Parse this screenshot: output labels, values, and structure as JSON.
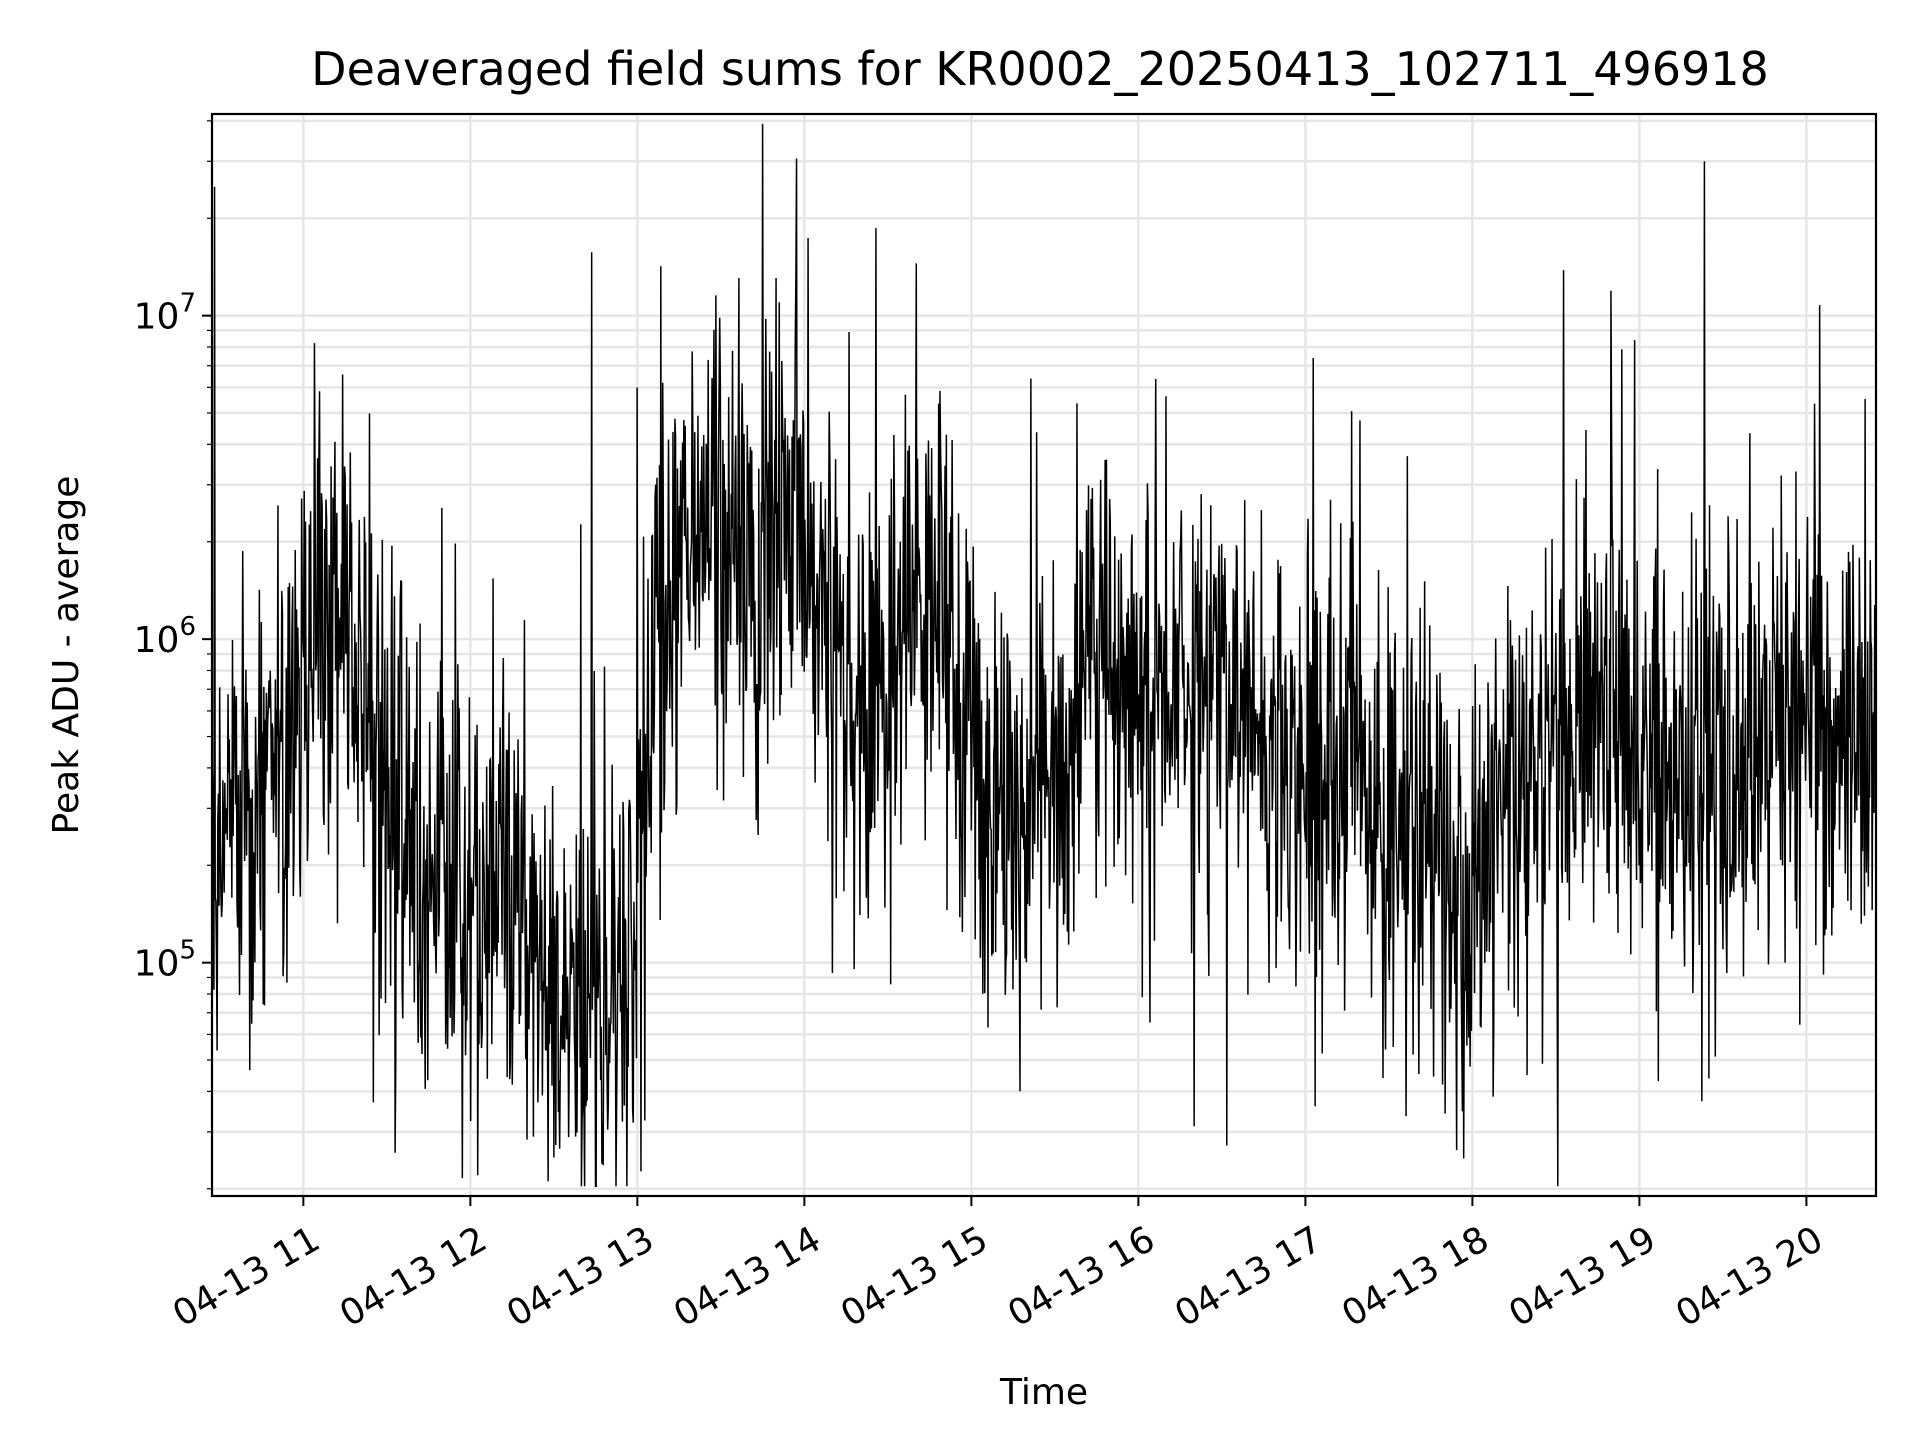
{
  "chart_data": {
    "type": "line",
    "title": "Deaveraged field sums for KR0002_20250413_102711_496918",
    "xlabel": "Time",
    "ylabel": "Peak ADU - average",
    "x_axis": {
      "kind": "datetime",
      "range": [
        "2025-04-13 10:27:11",
        "2025-04-13 20:25:00"
      ],
      "ticks": [
        "04-13 11",
        "04-13 12",
        "04-13 13",
        "04-13 14",
        "04-13 15",
        "04-13 16",
        "04-13 17",
        "04-13 18",
        "04-13 19",
        "04-13 20"
      ],
      "tick_rotation_deg": 30
    },
    "y_axis": {
      "scale": "log",
      "range": [
        19000,
        42000000
      ],
      "ticks": [
        {
          "base": "10",
          "exp": "5",
          "value": 100000
        },
        {
          "base": "10",
          "exp": "6",
          "value": 1000000
        },
        {
          "base": "10",
          "exp": "7",
          "value": 10000000
        }
      ]
    },
    "grid": true,
    "legend": "none",
    "line_color": "#000000",
    "series": [
      {
        "x_unit": "hours of day",
        "x": [
          10.45,
          10.6,
          10.8,
          11.0,
          11.2,
          11.4,
          11.6,
          11.8,
          12.0,
          12.2,
          12.4,
          12.6,
          12.8,
          12.97,
          13.1,
          13.3,
          13.5,
          13.7,
          13.9,
          14.1,
          14.3,
          14.5,
          14.7,
          14.9,
          15.1,
          15.3,
          15.5,
          15.7,
          15.9,
          16.1,
          16.3,
          16.5,
          16.7,
          16.9,
          17.1,
          17.3,
          17.5,
          17.7,
          17.85,
          18.0,
          18.2,
          18.4,
          18.6,
          18.8,
          18.98,
          19.1,
          19.3,
          19.42,
          19.6,
          19.8,
          20.0,
          20.2,
          20.43
        ],
        "y": [
          300000,
          260000,
          330000,
          900000,
          1300000,
          600000,
          250000,
          200000,
          150000,
          180000,
          120000,
          60000,
          70000,
          90000,
          800000,
          2000000,
          2500000,
          2200000,
          2800000,
          1500000,
          700000,
          600000,
          1800000,
          800000,
          400000,
          300000,
          350000,
          800000,
          900000,
          700000,
          800000,
          650000,
          500000,
          600000,
          400000,
          350000,
          300000,
          250000,
          150000,
          140000,
          300000,
          350000,
          500000,
          600000,
          450000,
          500000,
          300000,
          600000,
          400000,
          550000,
          600000,
          500000,
          400000
        ]
      }
    ],
    "peaks": {
      "x_unit": "hours of day",
      "x": [
        10.47,
        13.0,
        13.85,
        14.67,
        18.97,
        19.39
      ],
      "y": [
        25000000,
        6000000,
        11000000,
        14500000,
        8400000,
        30000000
      ]
    },
    "troughs": {
      "x_unit": "hours of day",
      "x": [
        11.42,
        12.5,
        12.63,
        17.06,
        17.82
      ],
      "y": [
        37000,
        25000,
        29000,
        36000,
        42000
      ]
    }
  }
}
